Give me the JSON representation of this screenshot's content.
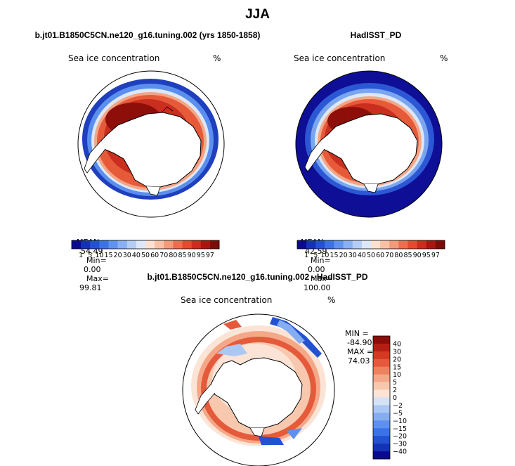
{
  "figure": {
    "season": "JJA"
  },
  "colors": {
    "abs_palette": [
      "#0a0a8f",
      "#1433b4",
      "#2352d1",
      "#3b73e6",
      "#6093ef",
      "#88b0f2",
      "#b3cdf5",
      "#dde7f7",
      "#fbe0d0",
      "#f8c1a6",
      "#f39a79",
      "#ec6e4f",
      "#e34a2f",
      "#cb2c1c",
      "#a8170f",
      "#7d0c08"
    ],
    "diff_palette": [
      "#0a0a8f",
      "#1433b4",
      "#2352d1",
      "#3b73e6",
      "#5e90ef",
      "#84adf2",
      "#abc8f4",
      "#d4e2f6",
      "#fbe4d6",
      "#f8c8ae",
      "#f4a887",
      "#ee825f",
      "#e55a3a",
      "#d23a22",
      "#b31f13",
      "#8b0d08"
    ],
    "land": "#ffffff",
    "ocean_background": "#0e0e96"
  },
  "chart_data": [
    {
      "type": "heatmap",
      "panel": "model",
      "title": "b.jt01.B1850C5CN.ne120_g16.tuning.002 (yrs 1850-1858)",
      "variable": "Sea ice concentration",
      "units": "%",
      "stats": {
        "mean_label": "MEAN=",
        "mean": "54.49",
        "min_label": "Min=",
        "min": "0.00",
        "max_label": "Max=",
        "max": "99.81"
      },
      "colorbar_levels": [
        "1",
        "5",
        "10",
        "15",
        "20",
        "30",
        "40",
        "50",
        "60",
        "70",
        "80",
        "85",
        "90",
        "95",
        "97"
      ],
      "projection": "south-polar stereographic"
    },
    {
      "type": "heatmap",
      "panel": "observations",
      "title": "HadISST_PD",
      "variable": "Sea ice concentration",
      "units": "%",
      "stats": {
        "mean_label": "MEAN=",
        "mean": "42.59",
        "min_label": "Min=",
        "min": "0.00",
        "max_label": "Max=",
        "max": "100.00"
      },
      "colorbar_levels": [
        "1",
        "5",
        "10",
        "15",
        "20",
        "30",
        "40",
        "50",
        "60",
        "70",
        "80",
        "85",
        "90",
        "95",
        "97"
      ],
      "projection": "south-polar stereographic"
    },
    {
      "type": "heatmap",
      "panel": "difference",
      "title": "b.jt01.B1850C5CN.ne120_g16.tuning.002 - HadISST_PD",
      "variable": "Sea ice concentration",
      "units": "%",
      "stats": {
        "min_label": "MIN =",
        "min": "-84.90",
        "max_label": "MAX =",
        "max": "74.03"
      },
      "colorbar_levels": [
        "40",
        "30",
        "20",
        "15",
        "10",
        "5",
        "2",
        "0",
        "−2",
        "−5",
        "−10",
        "−15",
        "−20",
        "−30",
        "−40"
      ],
      "projection": "south-polar stereographic"
    }
  ]
}
